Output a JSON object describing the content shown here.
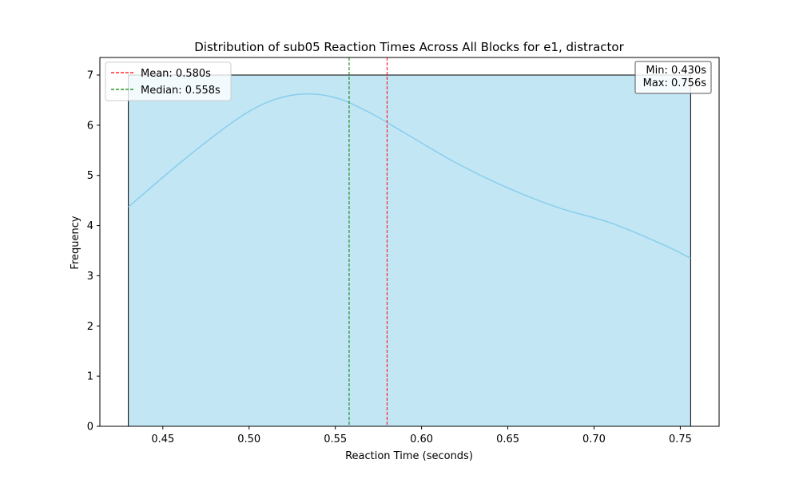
{
  "chart_data": {
    "type": "histogram",
    "title": "Distribution of sub05 Reaction Times Across All Blocks for e1, distractor",
    "xlabel": "Reaction Time (seconds)",
    "ylabel": "Frequency",
    "xlim": [
      0.4135,
      0.7725
    ],
    "ylim": [
      0,
      7.35
    ],
    "xticks": [
      0.45,
      0.5,
      0.55,
      0.6,
      0.65,
      0.7,
      0.75
    ],
    "xtick_labels": [
      "0.45",
      "0.50",
      "0.55",
      "0.60",
      "0.65",
      "0.70",
      "0.75"
    ],
    "yticks": [
      0,
      1,
      2,
      3,
      4,
      5,
      6,
      7
    ],
    "ytick_labels": [
      "0",
      "1",
      "2",
      "3",
      "4",
      "5",
      "6",
      "7"
    ],
    "bins": [
      {
        "x0": 0.43,
        "x1": 0.756,
        "count": 7
      }
    ],
    "kde": {
      "x": [
        0.43,
        0.46,
        0.49,
        0.51,
        0.53,
        0.55,
        0.57,
        0.59,
        0.62,
        0.65,
        0.68,
        0.71,
        0.74,
        0.756
      ],
      "y": [
        4.37,
        5.25,
        6.05,
        6.45,
        6.62,
        6.55,
        6.25,
        5.85,
        5.25,
        4.75,
        4.35,
        4.05,
        3.62,
        3.35
      ]
    },
    "lines": [
      {
        "name": "Mean: 0.580s",
        "x": 0.58,
        "color": "#ff0000"
      },
      {
        "name": "Median: 0.558s",
        "x": 0.558,
        "color": "#008000"
      }
    ],
    "stats_box": {
      "line1": "Min: 0.430s",
      "line2": "Max: 0.756s"
    },
    "legend_position": "top-left",
    "grid": false,
    "colors": {
      "bar_fill": "#87ceeb",
      "bar_opacity": 0.5,
      "kde_line": "#87ceeb"
    }
  }
}
